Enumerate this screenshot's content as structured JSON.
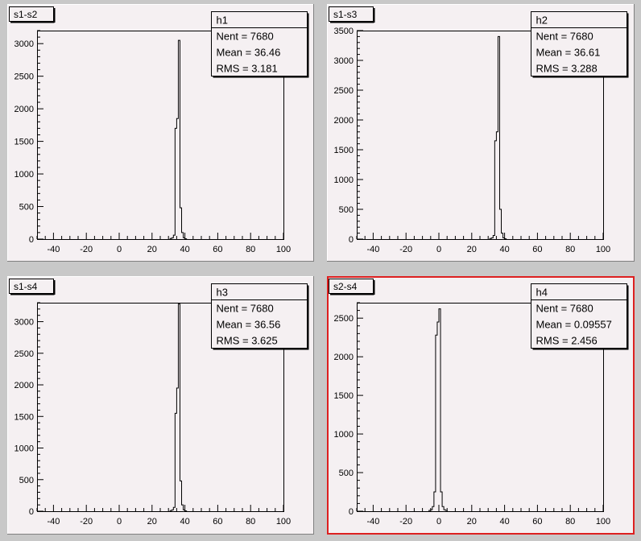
{
  "chart_data": [
    {
      "type": "bar",
      "title": "s1-s2",
      "stats": {
        "name": "h1",
        "nent_label": "Nent = 7680",
        "mean_label": "Mean  =  36.46",
        "rms_label": "RMS   =  3.181"
      },
      "xlim": [
        -50,
        100
      ],
      "ylim": [
        0,
        3200
      ],
      "xticks": [
        -40,
        -20,
        0,
        20,
        40,
        60,
        80,
        100
      ],
      "yticks": [
        0,
        500,
        1000,
        1500,
        2000,
        2500,
        3000
      ],
      "bins": [
        [
          31,
          10
        ],
        [
          32,
          20
        ],
        [
          33,
          60
        ],
        [
          34,
          1700
        ],
        [
          35,
          1850
        ],
        [
          36,
          3050
        ],
        [
          37,
          480
        ],
        [
          38,
          100
        ],
        [
          39,
          20
        ],
        [
          40,
          5
        ]
      ],
      "selected": false
    },
    {
      "type": "bar",
      "title": "s1-s3",
      "stats": {
        "name": "h2",
        "nent_label": "Nent = 7680",
        "mean_label": "Mean  =  36.61",
        "rms_label": "RMS   =  3.288"
      },
      "xlim": [
        -50,
        100
      ],
      "ylim": [
        0,
        3500
      ],
      "xticks": [
        -40,
        -20,
        0,
        20,
        40,
        60,
        80,
        100
      ],
      "yticks": [
        0,
        500,
        1000,
        1500,
        2000,
        2500,
        3000,
        3500
      ],
      "bins": [
        [
          31,
          10
        ],
        [
          32,
          20
        ],
        [
          33,
          60
        ],
        [
          34,
          1650
        ],
        [
          35,
          1800
        ],
        [
          36,
          3400
        ],
        [
          37,
          500
        ],
        [
          38,
          100
        ],
        [
          39,
          20
        ],
        [
          40,
          5
        ]
      ],
      "selected": false
    },
    {
      "type": "bar",
      "title": "s1-s4",
      "stats": {
        "name": "h3",
        "nent_label": "Nent = 7680",
        "mean_label": "Mean  =  36.56",
        "rms_label": "RMS   =  3.625"
      },
      "xlim": [
        -50,
        100
      ],
      "ylim": [
        0,
        3300
      ],
      "xticks": [
        -40,
        -20,
        0,
        20,
        40,
        60,
        80,
        100
      ],
      "yticks": [
        0,
        500,
        1000,
        1500,
        2000,
        2500,
        3000
      ],
      "bins": [
        [
          31,
          10
        ],
        [
          32,
          20
        ],
        [
          33,
          60
        ],
        [
          34,
          1550
        ],
        [
          35,
          1950
        ],
        [
          36,
          3280
        ],
        [
          37,
          480
        ],
        [
          38,
          100
        ],
        [
          39,
          20
        ],
        [
          40,
          5
        ]
      ],
      "selected": false
    },
    {
      "type": "bar",
      "title": "s2-s4",
      "stats": {
        "name": "h4",
        "nent_label": "Nent = 7680",
        "mean_label": "Mean = 0.09557",
        "rms_label": "RMS   =  2.456"
      },
      "xlim": [
        -50,
        100
      ],
      "ylim": [
        0,
        2700
      ],
      "xticks": [
        -40,
        -20,
        0,
        20,
        40,
        60,
        80,
        100
      ],
      "yticks": [
        0,
        500,
        1000,
        1500,
        2000,
        2500
      ],
      "bins": [
        [
          -6,
          10
        ],
        [
          -5,
          20
        ],
        [
          -4,
          60
        ],
        [
          -3,
          250
        ],
        [
          -2,
          2280
        ],
        [
          -1,
          2450
        ],
        [
          0,
          2620
        ],
        [
          1,
          250
        ],
        [
          2,
          60
        ],
        [
          3,
          20
        ],
        [
          4,
          10
        ]
      ],
      "selected": true
    }
  ]
}
